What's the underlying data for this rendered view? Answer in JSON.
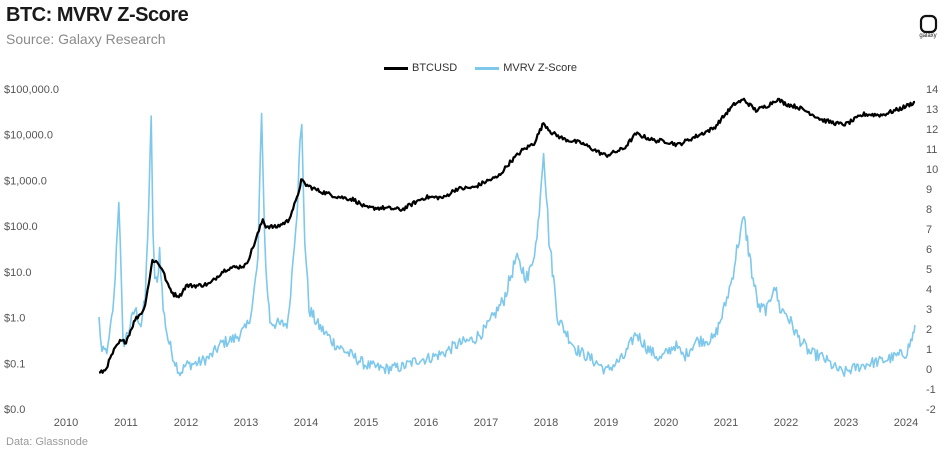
{
  "header": {
    "title": "BTC: MVRV Z-Score",
    "subtitle": "Source: Galaxy Research",
    "footnote": "Data: Glassnode",
    "logo_text": "galaxy"
  },
  "chart_data": {
    "type": "line",
    "title": "BTC: MVRV Z-Score",
    "legend": [
      {
        "name": "BTCUSD",
        "color": "#000000"
      },
      {
        "name": "MVRV Z-Score",
        "color": "#7ec8ec"
      }
    ],
    "x_ticks": [
      "2010",
      "2011",
      "2012",
      "2013",
      "2014",
      "2015",
      "2016",
      "2017",
      "2018",
      "2019",
      "2020",
      "2021",
      "2022",
      "2023",
      "2024"
    ],
    "x_range": [
      2010.0,
      2024.2
    ],
    "left_axis": {
      "scale": "log",
      "ticks": [
        {
          "label": "$0.0",
          "value": 0.01
        },
        {
          "label": "$0.1",
          "value": 0.1
        },
        {
          "label": "$1.0",
          "value": 1
        },
        {
          "label": "$10.0",
          "value": 10
        },
        {
          "label": "$100.0",
          "value": 100
        },
        {
          "label": "$1,000.0",
          "value": 1000
        },
        {
          "label": "$10,000.0",
          "value": 10000
        },
        {
          "label": "$100,000.0",
          "value": 100000
        }
      ]
    },
    "right_axis": {
      "scale": "linear",
      "range": [
        -2,
        14
      ],
      "ticks": [
        "-2",
        "-1",
        "0",
        "1",
        "2",
        "3",
        "4",
        "5",
        "6",
        "7",
        "8",
        "9",
        "10",
        "11",
        "12",
        "13",
        "14"
      ]
    },
    "series": [
      {
        "name": "BTCUSD",
        "axis": "left",
        "color": "#000000",
        "x": [
          2010.55,
          2010.65,
          2010.8,
          2010.9,
          2011.0,
          2011.15,
          2011.3,
          2011.4,
          2011.44,
          2011.5,
          2011.6,
          2011.7,
          2011.8,
          2011.9,
          2012.0,
          2012.2,
          2012.4,
          2012.6,
          2012.7,
          2012.9,
          2013.0,
          2013.15,
          2013.28,
          2013.33,
          2013.5,
          2013.7,
          2013.85,
          2013.92,
          2014.0,
          2014.2,
          2014.5,
          2014.8,
          2015.0,
          2015.3,
          2015.6,
          2015.9,
          2016.0,
          2016.3,
          2016.5,
          2016.8,
          2017.0,
          2017.2,
          2017.4,
          2017.6,
          2017.8,
          2017.96,
          2018.1,
          2018.3,
          2018.6,
          2018.9,
          2019.0,
          2019.3,
          2019.5,
          2019.8,
          2020.0,
          2020.2,
          2020.5,
          2020.8,
          2021.0,
          2021.15,
          2021.3,
          2021.5,
          2021.7,
          2021.85,
          2022.0,
          2022.2,
          2022.4,
          2022.6,
          2022.9,
          2023.0,
          2023.3,
          2023.6,
          2023.9,
          2024.0,
          2024.15
        ],
        "y": [
          0.06,
          0.07,
          0.19,
          0.3,
          0.3,
          0.9,
          1.5,
          8,
          18,
          17,
          12,
          5,
          3.2,
          3.0,
          5,
          5,
          5.5,
          10,
          12,
          13,
          14,
          45,
          140,
          100,
          95,
          130,
          400,
          1000,
          800,
          600,
          450,
          380,
          250,
          250,
          230,
          380,
          430,
          420,
          650,
          700,
          950,
          1200,
          2500,
          4500,
          6500,
          18000,
          11000,
          8000,
          6500,
          4000,
          3500,
          5000,
          10500,
          7500,
          7200,
          6000,
          9200,
          14000,
          29000,
          48000,
          58000,
          34000,
          44000,
          60000,
          47000,
          40000,
          30000,
          21000,
          17000,
          17000,
          28000,
          27000,
          37000,
          42000,
          52000
        ]
      },
      {
        "name": "MVRV Z-Score",
        "axis": "right",
        "color": "#7ec8ec",
        "x": [
          2010.55,
          2010.6,
          2010.7,
          2010.8,
          2010.88,
          2010.95,
          2011.05,
          2011.15,
          2011.25,
          2011.32,
          2011.38,
          2011.42,
          2011.45,
          2011.48,
          2011.52,
          2011.56,
          2011.62,
          2011.7,
          2011.8,
          2011.9,
          2012.0,
          2012.2,
          2012.4,
          2012.6,
          2012.8,
          2013.0,
          2013.1,
          2013.2,
          2013.26,
          2013.29,
          2013.33,
          2013.4,
          2013.55,
          2013.7,
          2013.85,
          2013.9,
          2013.93,
          2013.98,
          2014.05,
          2014.2,
          2014.5,
          2014.8,
          2015.0,
          2015.3,
          2015.6,
          2015.9,
          2016.0,
          2016.3,
          2016.5,
          2016.8,
          2017.0,
          2017.3,
          2017.5,
          2017.7,
          2017.85,
          2017.96,
          2018.05,
          2018.2,
          2018.5,
          2018.9,
          2019.0,
          2019.3,
          2019.5,
          2019.7,
          2019.9,
          2020.15,
          2020.3,
          2020.5,
          2020.8,
          2020.95,
          2021.1,
          2021.2,
          2021.3,
          2021.45,
          2021.55,
          2021.7,
          2021.8,
          2021.9,
          2022.0,
          2022.2,
          2022.4,
          2022.6,
          2022.8,
          2022.95,
          2023.1,
          2023.4,
          2023.6,
          2023.8,
          2024.0,
          2024.1,
          2024.15
        ],
        "y": [
          2.5,
          0.8,
          1.0,
          3.5,
          8.6,
          1.2,
          2.0,
          3.0,
          2.2,
          3.5,
          8.3,
          12.3,
          7.0,
          4.5,
          4.2,
          6.0,
          3.0,
          1.5,
          0.5,
          -0.2,
          0.2,
          0.3,
          0.6,
          1.3,
          1.5,
          2.0,
          3.0,
          5.5,
          13.2,
          9.0,
          5.0,
          2.4,
          2.2,
          2.3,
          8.0,
          11.2,
          12.0,
          6.5,
          3.0,
          2.2,
          1.2,
          0.6,
          0.2,
          0.0,
          0.1,
          0.5,
          0.5,
          0.8,
          1.2,
          1.5,
          2.0,
          3.5,
          5.5,
          4.5,
          6.5,
          11.1,
          6.5,
          2.5,
          1.0,
          0.2,
          -0.1,
          0.6,
          1.8,
          1.0,
          0.5,
          1.2,
          0.6,
          1.4,
          1.5,
          2.8,
          4.5,
          6.3,
          7.5,
          4.5,
          3.0,
          3.0,
          4.3,
          3.0,
          2.8,
          1.6,
          0.8,
          0.6,
          0.1,
          -0.2,
          0.0,
          0.3,
          0.4,
          0.6,
          0.8,
          1.5,
          2.2
        ]
      }
    ]
  }
}
